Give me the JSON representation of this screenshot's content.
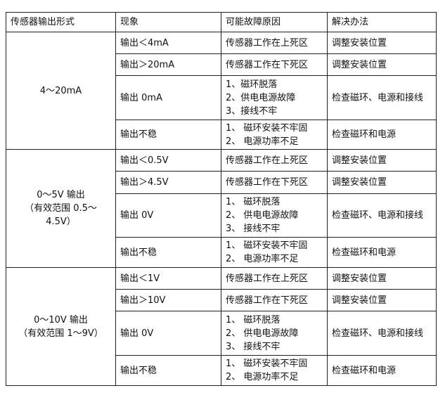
{
  "headers": [
    "传感器输出形式",
    "现象",
    "可能故障原因",
    "解决办法"
  ],
  "groups": [
    {
      "type_lines": [
        "4～20mA"
      ],
      "rows": [
        {
          "symptom": "输出＜4mA",
          "causes": [
            "传感器工作在上死区"
          ],
          "solution": "调整安装位置"
        },
        {
          "symptom": "输出＞20mA",
          "causes": [
            "传感器工作在下死区"
          ],
          "solution": "调整安装位置"
        },
        {
          "symptom": "输出 0mA",
          "causes": [
            "1、磁环脱落",
            "2、供电电源故障",
            "3、接线不牢"
          ],
          "solution": "检查磁环、电源和接线"
        },
        {
          "symptom": "输出不稳",
          "causes": [
            "1、 磁环安装不牢固",
            "2、 电源功率不足"
          ],
          "solution": "检查磁环和电源"
        }
      ]
    },
    {
      "type_lines": [
        "0～5V 输出",
        "（有效范围 0.5～",
        "4.5V）"
      ],
      "rows": [
        {
          "symptom": "输出＜0.5V",
          "causes": [
            "传感器工作在上死区"
          ],
          "solution": "调整安装位置"
        },
        {
          "symptom": "输出＞4.5V",
          "causes": [
            "传感器工作在下死区"
          ],
          "solution": "调整安装位置"
        },
        {
          "symptom": "输出 0V",
          "causes": [
            "1、 磁环脱落",
            "2、 供电电源故障",
            "3、 接线不牢"
          ],
          "solution": "检查磁环、电源和接线"
        },
        {
          "symptom": "输出不稳",
          "causes": [
            "1、 磁环安装不牢固",
            "2、 电源功率不足"
          ],
          "solution": "检查磁环和电源"
        }
      ]
    },
    {
      "type_lines": [
        "0～10V 输出",
        "（有效范围 1～9V）"
      ],
      "rows": [
        {
          "symptom": "输出＜1V",
          "causes": [
            "传感器工作在上死区"
          ],
          "solution": "调整安装位置"
        },
        {
          "symptom": "输出＞10V",
          "causes": [
            "传感器工作在下死区"
          ],
          "solution": "调整安装位置"
        },
        {
          "symptom": "输出 0V",
          "causes": [
            "1、 磁环脱落",
            "2、 供电电源故障",
            "3、 接线不牢"
          ],
          "solution": "检查磁环、电源和接线"
        },
        {
          "symptom": "输出不稳",
          "causes": [
            "1、 磁环安装不牢固",
            "2、 电源功率不足"
          ],
          "solution": "检查磁环和电源"
        }
      ]
    }
  ]
}
